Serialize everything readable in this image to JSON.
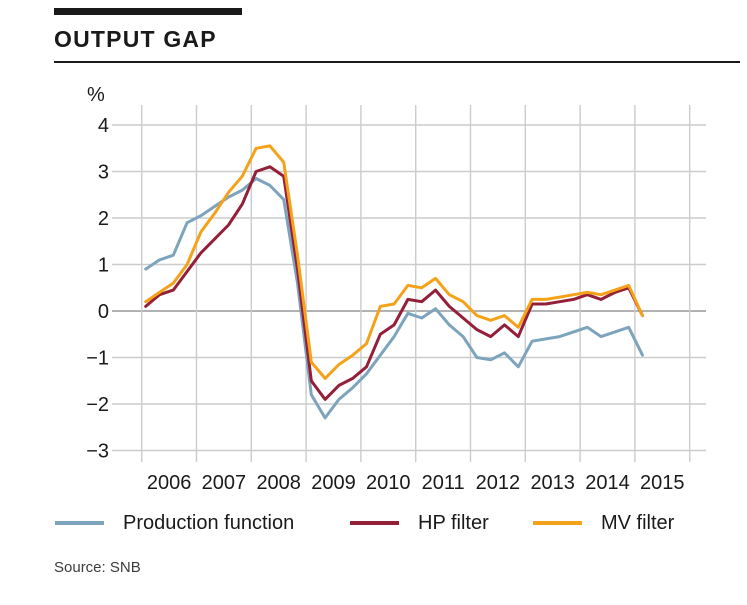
{
  "header": {
    "title": "OUTPUT GAP"
  },
  "source": {
    "label": "Source: SNB"
  },
  "colors": {
    "accent_bar": "#1a1a1a",
    "grid": "#cccccc",
    "zero_line": "#999999",
    "tick_text": "#1a1a1a",
    "production_function": "#7DA4BC",
    "hp_filter": "#931F39",
    "mv_filter": "#F5A21B"
  },
  "chart_data": {
    "type": "line",
    "title": "OUTPUT GAP",
    "ylabel": "%",
    "ylim": [
      -3,
      4
    ],
    "yticks": [
      4,
      3,
      2,
      1,
      0,
      -1,
      -2,
      -3
    ],
    "ytick_labels": [
      "4",
      "3",
      "2",
      "1",
      "0",
      "−1",
      "−2",
      "−3"
    ],
    "x_year_ticks": [
      "2006",
      "2007",
      "2008",
      "2009",
      "2010",
      "2011",
      "2012",
      "2013",
      "2014",
      "2015"
    ],
    "grid": true,
    "legend_position": "bottom",
    "x_quarters": [
      "2006 Q1",
      "2006 Q2",
      "2006 Q3",
      "2006 Q4",
      "2007 Q1",
      "2007 Q2",
      "2007 Q3",
      "2007 Q4",
      "2008 Q1",
      "2008 Q2",
      "2008 Q3",
      "2008 Q4",
      "2009 Q1",
      "2009 Q2",
      "2009 Q3",
      "2009 Q4",
      "2010 Q1",
      "2010 Q2",
      "2010 Q3",
      "2010 Q4",
      "2011 Q1",
      "2011 Q2",
      "2011 Q3",
      "2011 Q4",
      "2012 Q1",
      "2012 Q2",
      "2012 Q3",
      "2012 Q4",
      "2013 Q1",
      "2013 Q2",
      "2013 Q3",
      "2013 Q4",
      "2014 Q1",
      "2014 Q2",
      "2014 Q3",
      "2014 Q4",
      "2015 Q1"
    ],
    "series": [
      {
        "name": "Production function",
        "color": "#7DA4BC",
        "values": [
          0.9,
          1.1,
          1.2,
          1.9,
          2.05,
          2.25,
          2.45,
          2.6,
          2.85,
          2.7,
          2.4,
          0.6,
          -1.8,
          -2.3,
          -1.9,
          -1.65,
          -1.35,
          -0.95,
          -0.55,
          -0.05,
          -0.15,
          0.05,
          -0.3,
          -0.55,
          -1.0,
          -1.05,
          -0.9,
          -1.2,
          -0.65,
          -0.6,
          -0.55,
          -0.45,
          -0.35,
          -0.55,
          -0.45,
          -0.35,
          -0.95
        ]
      },
      {
        "name": "HP filter",
        "color": "#931F39",
        "values": [
          0.1,
          0.35,
          0.45,
          0.85,
          1.25,
          1.55,
          1.85,
          2.3,
          3.0,
          3.1,
          2.9,
          0.9,
          -1.5,
          -1.9,
          -1.6,
          -1.45,
          -1.2,
          -0.5,
          -0.3,
          0.25,
          0.2,
          0.45,
          0.1,
          -0.15,
          -0.4,
          -0.55,
          -0.3,
          -0.55,
          0.15,
          0.15,
          0.2,
          0.25,
          0.35,
          0.25,
          0.4,
          0.5,
          -0.1
        ]
      },
      {
        "name": "MV filter",
        "color": "#F5A21B",
        "values": [
          0.2,
          0.4,
          0.6,
          1.0,
          1.7,
          2.1,
          2.55,
          2.9,
          3.5,
          3.55,
          3.2,
          1.2,
          -1.1,
          -1.45,
          -1.15,
          -0.95,
          -0.7,
          0.1,
          0.15,
          0.55,
          0.5,
          0.7,
          0.35,
          0.2,
          -0.1,
          -0.2,
          -0.1,
          -0.35,
          0.25,
          0.25,
          0.3,
          0.35,
          0.4,
          0.35,
          0.45,
          0.55,
          -0.1
        ]
      }
    ]
  }
}
